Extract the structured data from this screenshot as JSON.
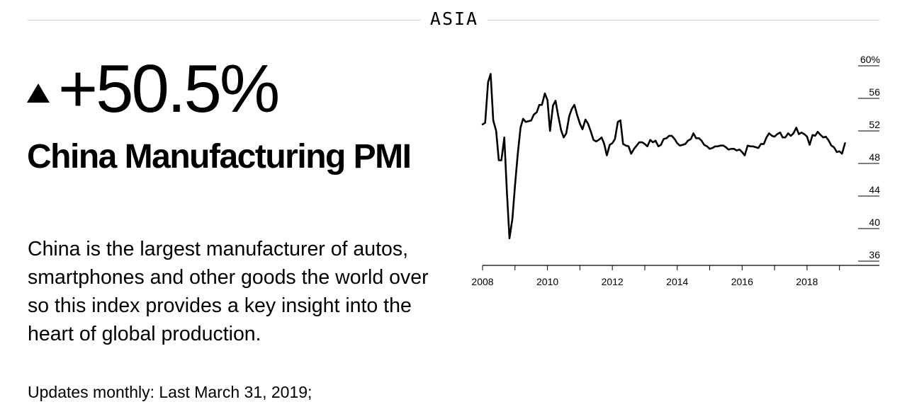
{
  "section": {
    "label": "ASIA"
  },
  "indicator": {
    "change": "+50.5%",
    "title": "China Manufacturing PMI",
    "description": "China is the largest manufacturer of autos, smartphones and other goods the world over so this index provides a key insight into the heart of global production.",
    "updates": "Updates monthly: Last March 31, 2019;",
    "direction_icon": "up-triangle-icon"
  },
  "chart_data": {
    "type": "line",
    "title": "",
    "xlabel": "",
    "ylabel": "",
    "xlim": [
      2008,
      2019.4
    ],
    "ylim": [
      36,
      60
    ],
    "y_ticks": [
      36,
      40,
      44,
      48,
      52,
      56,
      60
    ],
    "y_tick_labels": [
      "36",
      "40",
      "44",
      "48",
      "52",
      "56",
      "60%"
    ],
    "x_ticks": [
      2008,
      2009,
      2010,
      2011,
      2012,
      2013,
      2014,
      2015,
      2016,
      2017,
      2018,
      2019
    ],
    "x_tick_labels": [
      "2008",
      "",
      "2010",
      "",
      "2012",
      "",
      "2014",
      "",
      "2016",
      "",
      "2018",
      ""
    ],
    "grid": false,
    "line_color": "#000000",
    "series": [
      {
        "values": [
          [
            2008.0,
            52.8
          ],
          [
            2008.08,
            53.0
          ],
          [
            2008.17,
            58.0
          ],
          [
            2008.25,
            59.0
          ],
          [
            2008.33,
            53.3
          ],
          [
            2008.42,
            52.0
          ],
          [
            2008.5,
            48.4
          ],
          [
            2008.58,
            48.4
          ],
          [
            2008.67,
            51.2
          ],
          [
            2008.75,
            44.6
          ],
          [
            2008.83,
            38.8
          ],
          [
            2008.92,
            41.2
          ],
          [
            2009.0,
            45.3
          ],
          [
            2009.08,
            49.0
          ],
          [
            2009.17,
            52.4
          ],
          [
            2009.25,
            53.5
          ],
          [
            2009.33,
            53.1
          ],
          [
            2009.42,
            53.2
          ],
          [
            2009.5,
            53.3
          ],
          [
            2009.58,
            54.0
          ],
          [
            2009.67,
            54.3
          ],
          [
            2009.75,
            55.2
          ],
          [
            2009.83,
            55.2
          ],
          [
            2009.92,
            56.6
          ],
          [
            2010.0,
            55.8
          ],
          [
            2010.08,
            52.0
          ],
          [
            2010.17,
            55.1
          ],
          [
            2010.25,
            55.7
          ],
          [
            2010.33,
            53.9
          ],
          [
            2010.42,
            52.1
          ],
          [
            2010.5,
            51.2
          ],
          [
            2010.58,
            51.7
          ],
          [
            2010.67,
            53.8
          ],
          [
            2010.75,
            54.7
          ],
          [
            2010.83,
            55.2
          ],
          [
            2010.92,
            53.9
          ],
          [
            2011.0,
            52.9
          ],
          [
            2011.08,
            52.2
          ],
          [
            2011.17,
            53.4
          ],
          [
            2011.25,
            52.9
          ],
          [
            2011.33,
            52.0
          ],
          [
            2011.42,
            50.9
          ],
          [
            2011.5,
            50.7
          ],
          [
            2011.58,
            50.9
          ],
          [
            2011.67,
            51.2
          ],
          [
            2011.75,
            50.4
          ],
          [
            2011.83,
            49.0
          ],
          [
            2011.92,
            50.3
          ],
          [
            2012.0,
            50.5
          ],
          [
            2012.08,
            51.0
          ],
          [
            2012.17,
            53.1
          ],
          [
            2012.25,
            53.3
          ],
          [
            2012.33,
            50.4
          ],
          [
            2012.42,
            50.2
          ],
          [
            2012.5,
            50.1
          ],
          [
            2012.58,
            49.2
          ],
          [
            2012.67,
            49.8
          ],
          [
            2012.75,
            50.2
          ],
          [
            2012.83,
            50.6
          ],
          [
            2012.92,
            50.6
          ],
          [
            2013.0,
            50.4
          ],
          [
            2013.08,
            50.1
          ],
          [
            2013.17,
            50.9
          ],
          [
            2013.25,
            50.6
          ],
          [
            2013.33,
            50.8
          ],
          [
            2013.42,
            50.1
          ],
          [
            2013.5,
            50.3
          ],
          [
            2013.58,
            51.0
          ],
          [
            2013.67,
            51.1
          ],
          [
            2013.75,
            51.4
          ],
          [
            2013.83,
            51.4
          ],
          [
            2013.92,
            51.0
          ],
          [
            2014.0,
            50.5
          ],
          [
            2014.08,
            50.2
          ],
          [
            2014.17,
            50.3
          ],
          [
            2014.25,
            50.4
          ],
          [
            2014.33,
            50.8
          ],
          [
            2014.42,
            51.0
          ],
          [
            2014.5,
            51.7
          ],
          [
            2014.58,
            51.1
          ],
          [
            2014.67,
            51.1
          ],
          [
            2014.75,
            50.8
          ],
          [
            2014.83,
            50.3
          ],
          [
            2014.92,
            50.1
          ],
          [
            2015.0,
            49.8
          ],
          [
            2015.08,
            49.9
          ],
          [
            2015.17,
            50.1
          ],
          [
            2015.25,
            50.1
          ],
          [
            2015.33,
            50.2
          ],
          [
            2015.42,
            50.2
          ],
          [
            2015.5,
            50.0
          ],
          [
            2015.58,
            49.7
          ],
          [
            2015.67,
            49.8
          ],
          [
            2015.75,
            49.8
          ],
          [
            2015.83,
            49.6
          ],
          [
            2015.92,
            49.7
          ],
          [
            2016.0,
            49.4
          ],
          [
            2016.08,
            49.0
          ],
          [
            2016.17,
            50.2
          ],
          [
            2016.25,
            50.1
          ],
          [
            2016.33,
            50.1
          ],
          [
            2016.42,
            50.0
          ],
          [
            2016.5,
            49.9
          ],
          [
            2016.58,
            50.4
          ],
          [
            2016.67,
            50.4
          ],
          [
            2016.75,
            51.2
          ],
          [
            2016.83,
            51.7
          ],
          [
            2016.92,
            51.4
          ],
          [
            2017.0,
            51.3
          ],
          [
            2017.08,
            51.6
          ],
          [
            2017.17,
            51.8
          ],
          [
            2017.25,
            51.2
          ],
          [
            2017.33,
            51.2
          ],
          [
            2017.42,
            51.7
          ],
          [
            2017.5,
            51.4
          ],
          [
            2017.58,
            51.7
          ],
          [
            2017.67,
            52.4
          ],
          [
            2017.75,
            51.6
          ],
          [
            2017.83,
            51.8
          ],
          [
            2017.92,
            51.6
          ],
          [
            2018.0,
            51.3
          ],
          [
            2018.08,
            50.3
          ],
          [
            2018.17,
            51.5
          ],
          [
            2018.25,
            51.4
          ],
          [
            2018.33,
            51.9
          ],
          [
            2018.42,
            51.5
          ],
          [
            2018.5,
            51.2
          ],
          [
            2018.58,
            51.3
          ],
          [
            2018.67,
            50.8
          ],
          [
            2018.75,
            50.2
          ],
          [
            2018.83,
            50.0
          ],
          [
            2018.92,
            49.4
          ],
          [
            2019.0,
            49.5
          ],
          [
            2019.08,
            49.2
          ],
          [
            2019.17,
            50.5
          ]
        ]
      }
    ]
  }
}
